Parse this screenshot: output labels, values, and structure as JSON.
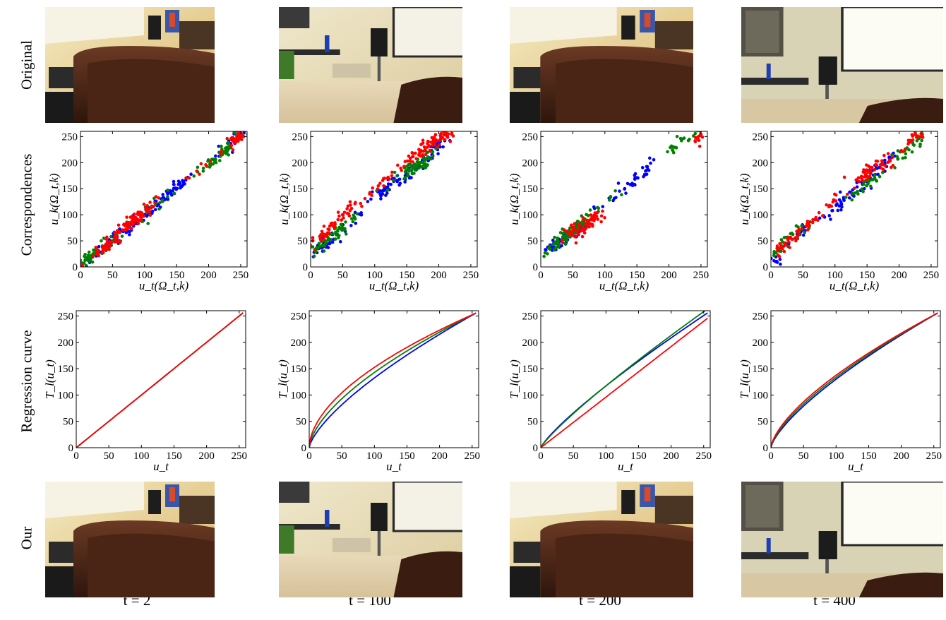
{
  "row_labels": [
    "Original",
    "Correspondences",
    "Regression curve",
    "Our"
  ],
  "col_labels": [
    "t = 2",
    "t = 100",
    "t = 200",
    "t = 400"
  ],
  "scene_colors": {
    "red": "#ff0000",
    "green": "#008000",
    "blue": "#0000ff"
  },
  "chart_data": [
    {
      "type": "scatter",
      "panel": "correspondences",
      "frame": "t = 2",
      "xlabel": "u_t(Ω_t,k)",
      "ylabel": "u_k(Ω_t,k)",
      "xlim": [
        0,
        260
      ],
      "ylim": [
        0,
        260
      ],
      "xticks": [
        0,
        50,
        100,
        150,
        200,
        250
      ],
      "yticks": [
        0,
        50,
        100,
        150,
        200,
        250
      ],
      "series": [
        {
          "color": "#0000ff",
          "clusters": [
            [
              15,
              15,
              6,
              10
            ],
            [
              60,
              60,
              18,
              30
            ],
            [
              110,
              110,
              22,
              40
            ],
            [
              150,
              155,
              12,
              30
            ],
            [
              235,
              240,
              12,
              25
            ]
          ]
        },
        {
          "color": "#008000",
          "clusters": [
            [
              20,
              25,
              8,
              35
            ],
            [
              45,
              45,
              12,
              25
            ],
            [
              110,
              110,
              20,
              20
            ],
            [
              210,
              205,
              16,
              40
            ],
            [
              235,
              240,
              12,
              25
            ]
          ]
        },
        {
          "color": "#ff0000",
          "clusters": [
            [
              40,
              40,
              14,
              40
            ],
            [
              80,
              85,
              18,
              80
            ],
            [
              200,
              200,
              20,
              10
            ],
            [
              245,
              248,
              8,
              35
            ]
          ]
        }
      ]
    },
    {
      "type": "scatter",
      "panel": "correspondences",
      "frame": "t = 100",
      "xlabel": "u_t(Ω_t,k)",
      "ylabel": "u_k(Ω_t,k)",
      "xlim": [
        0,
        260
      ],
      "ylim": [
        0,
        260
      ],
      "xticks": [
        0,
        50,
        100,
        150,
        200,
        250
      ],
      "yticks": [
        0,
        50,
        100,
        150,
        200,
        250
      ],
      "series": [
        {
          "color": "#0000ff",
          "clusters": [
            [
              20,
              40,
              8,
              30
            ],
            [
              60,
              80,
              14,
              15
            ],
            [
              120,
              150,
              16,
              45
            ],
            [
              175,
              200,
              14,
              25
            ],
            [
              200,
              235,
              10,
              15
            ]
          ]
        },
        {
          "color": "#008000",
          "clusters": [
            [
              25,
              50,
              14,
              45
            ],
            [
              60,
              85,
              10,
              15
            ],
            [
              150,
              185,
              16,
              25
            ],
            [
              175,
              200,
              14,
              40
            ]
          ]
        },
        {
          "color": "#ff0000",
          "clusters": [
            [
              25,
              70,
              14,
              40
            ],
            [
              50,
              100,
              14,
              20
            ],
            [
              100,
              150,
              20,
              15
            ],
            [
              180,
              230,
              24,
              70
            ],
            [
              215,
              252,
              10,
              20
            ]
          ]
        }
      ]
    },
    {
      "type": "scatter",
      "panel": "correspondences",
      "frame": "t = 200",
      "xlabel": "u_t(Ω_t,k)",
      "ylabel": "u_k(Ω_t,k)",
      "xlim": [
        0,
        260
      ],
      "ylim": [
        0,
        260
      ],
      "xticks": [
        0,
        50,
        100,
        150,
        200,
        250
      ],
      "yticks": [
        0,
        50,
        100,
        150,
        200,
        250
      ],
      "series": [
        {
          "color": "#0000ff",
          "clusters": [
            [
              25,
              45,
              12,
              30
            ],
            [
              60,
              70,
              12,
              15
            ],
            [
              110,
              130,
              10,
              12
            ],
            [
              150,
              170,
              10,
              20
            ],
            [
              170,
              195,
              8,
              8
            ]
          ]
        },
        {
          "color": "#008000",
          "clusters": [
            [
              38,
              58,
              14,
              70
            ],
            [
              60,
              80,
              12,
              15
            ],
            [
              100,
              120,
              10,
              8
            ],
            [
              210,
              230,
              10,
              15
            ],
            [
              235,
              252,
              8,
              8
            ]
          ]
        },
        {
          "color": "#ff0000",
          "clusters": [
            [
              75,
              85,
              14,
              60
            ],
            [
              50,
              75,
              10,
              10
            ],
            [
              245,
              243,
              8,
              12
            ]
          ]
        }
      ]
    },
    {
      "type": "scatter",
      "panel": "correspondences",
      "frame": "t = 400",
      "xlabel": "u_t(Ω_t,k)",
      "ylabel": "u_k(Ω_t,k)",
      "xlim": [
        0,
        260
      ],
      "ylim": [
        0,
        260
      ],
      "xticks": [
        0,
        50,
        100,
        150,
        200,
        250
      ],
      "yticks": [
        0,
        50,
        100,
        150,
        200,
        250
      ],
      "series": [
        {
          "color": "#0000ff",
          "clusters": [
            [
              10,
              15,
              4,
              8
            ],
            [
              40,
              60,
              12,
              15
            ],
            [
              110,
              125,
              12,
              25
            ],
            [
              150,
              165,
              12,
              20
            ],
            [
              175,
              200,
              10,
              20
            ]
          ]
        },
        {
          "color": "#008000",
          "clusters": [
            [
              10,
              30,
              6,
              12
            ],
            [
              40,
              65,
              14,
              25
            ],
            [
              150,
              160,
              14,
              25
            ],
            [
              200,
              210,
              14,
              15
            ],
            [
              225,
              240,
              8,
              15
            ]
          ]
        },
        {
          "color": "#ff0000",
          "clusters": [
            [
              25,
              45,
              12,
              25
            ],
            [
              55,
              80,
              12,
              20
            ],
            [
              100,
              130,
              10,
              10
            ],
            [
              150,
              180,
              14,
              45
            ],
            [
              185,
              200,
              10,
              10
            ],
            [
              225,
              245,
              8,
              20
            ]
          ]
        }
      ]
    },
    {
      "type": "line",
      "panel": "regression",
      "frame": "t = 2",
      "xlabel": "u_t",
      "ylabel": "T_l(u_t)",
      "xlim": [
        0,
        260
      ],
      "ylim": [
        0,
        260
      ],
      "xticks": [
        0,
        50,
        100,
        150,
        200,
        250
      ],
      "yticks": [
        0,
        50,
        100,
        150,
        200,
        250
      ],
      "series": [
        {
          "color": "#0000ff",
          "gamma": 1.0,
          "scale": 1.0
        },
        {
          "color": "#008000",
          "gamma": 1.0,
          "scale": 1.0
        },
        {
          "color": "#ff0000",
          "gamma": 1.0,
          "scale": 1.0
        }
      ]
    },
    {
      "type": "line",
      "panel": "regression",
      "frame": "t = 100",
      "xlabel": "u_t",
      "ylabel": "T_l(u_t)",
      "xlim": [
        0,
        260
      ],
      "ylim": [
        0,
        260
      ],
      "xticks": [
        0,
        50,
        100,
        150,
        200,
        250
      ],
      "yticks": [
        0,
        50,
        100,
        150,
        200,
        250
      ],
      "series": [
        {
          "color": "#0000ff",
          "gamma": 0.7,
          "scale": 1.0
        },
        {
          "color": "#008000",
          "gamma": 0.62,
          "scale": 1.0
        },
        {
          "color": "#ff0000",
          "gamma": 0.55,
          "scale": 1.0
        }
      ]
    },
    {
      "type": "line",
      "panel": "regression",
      "frame": "t = 200",
      "xlabel": "u_t",
      "ylabel": "T_l(u_t)",
      "xlim": [
        0,
        260
      ],
      "ylim": [
        0,
        260
      ],
      "xticks": [
        0,
        50,
        100,
        150,
        200,
        250
      ],
      "yticks": [
        0,
        50,
        100,
        150,
        200,
        250
      ],
      "series": [
        {
          "color": "#0000ff",
          "gamma": 0.83,
          "scale": 1.0
        },
        {
          "color": "#008000",
          "gamma": 0.86,
          "scale": 1.03
        },
        {
          "color": "#ff0000",
          "gamma": 1.0,
          "scale": 0.96
        }
      ]
    },
    {
      "type": "line",
      "panel": "regression",
      "frame": "t = 400",
      "xlabel": "u_t",
      "ylabel": "T_l(u_t)",
      "xlim": [
        0,
        260
      ],
      "ylim": [
        0,
        260
      ],
      "xticks": [
        0,
        50,
        100,
        150,
        200,
        250
      ],
      "yticks": [
        0,
        50,
        100,
        150,
        200,
        250
      ],
      "series": [
        {
          "color": "#0000ff",
          "gamma": 0.72,
          "scale": 1.0
        },
        {
          "color": "#008000",
          "gamma": 0.69,
          "scale": 1.0
        },
        {
          "color": "#ff0000",
          "gamma": 0.66,
          "scale": 1.0
        }
      ]
    }
  ]
}
